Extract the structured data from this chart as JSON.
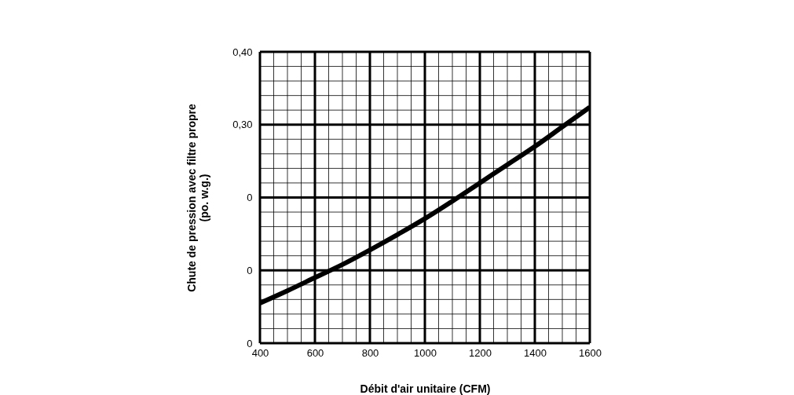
{
  "chart_data": {
    "type": "line",
    "xlabel": "Débit d'air unitaire (CFM)",
    "ylabel": "Chute de pression avec filtre propre\n(po. w.g.)",
    "x": [
      400,
      500,
      600,
      700,
      800,
      900,
      1000,
      1100,
      1200,
      1300,
      1400,
      1500,
      1600
    ],
    "series": [
      {
        "color": "#000000",
        "values": [
          0.055,
          0.072,
          0.09,
          0.108,
          0.128,
          0.149,
          0.171,
          0.195,
          0.22,
          0.245,
          0.27,
          0.297,
          0.324
        ]
      }
    ],
    "xlim": [
      400,
      1600
    ],
    "ylim": [
      0,
      0.4
    ],
    "xticks": [
      400,
      {
        "value": 450,
        "label": null
      },
      {
        "value": 500,
        "label": null
      },
      {
        "value": 550,
        "label": null
      },
      600,
      {
        "value": 650,
        "label": null
      },
      {
        "value": 700,
        "label": null
      },
      {
        "value": 750,
        "label": null
      },
      800,
      {
        "value": 850,
        "label": null
      },
      {
        "value": 900,
        "label": null
      },
      {
        "value": 950,
        "label": null
      },
      1000,
      {
        "value": 1050,
        "label": null
      },
      {
        "value": 1100,
        "label": null
      },
      {
        "value": 1150,
        "label": null
      },
      1200,
      {
        "value": 1250,
        "label": null
      },
      {
        "value": 1300,
        "label": null
      },
      {
        "value": 1350,
        "label": null
      },
      1400,
      {
        "value": 1450,
        "label": null
      },
      {
        "value": 1500,
        "label": null
      },
      {
        "value": 1550,
        "label": null
      },
      1600
    ],
    "yticks": [
      0,
      {
        "value": 0.02,
        "label": null
      },
      {
        "value": 0.04,
        "label": null
      },
      {
        "value": 0.06,
        "label": null
      },
      {
        "value": 0.08,
        "label": null
      },
      {
        "value": 0.1,
        "label": "0"
      },
      {
        "value": 0.12,
        "label": null
      },
      {
        "value": 0.14,
        "label": null
      },
      {
        "value": 0.16,
        "label": null
      },
      {
        "value": 0.18,
        "label": null
      },
      {
        "value": 0.2,
        "label": "0"
      },
      {
        "value": 0.22,
        "label": null
      },
      {
        "value": 0.24,
        "label": null
      },
      {
        "value": 0.26,
        "label": null
      },
      {
        "value": 0.28,
        "label": null
      },
      {
        "value": 0.3,
        "label": "0,30"
      },
      {
        "value": 0.32,
        "label": null
      },
      {
        "value": 0.34,
        "label": null
      },
      {
        "value": 0.36,
        "label": null
      },
      {
        "value": 0.38,
        "label": null
      },
      {
        "value": 0.4,
        "label": "0,40"
      }
    ],
    "grid": true,
    "marker": "none",
    "line_style": "solid",
    "legend": false
  }
}
